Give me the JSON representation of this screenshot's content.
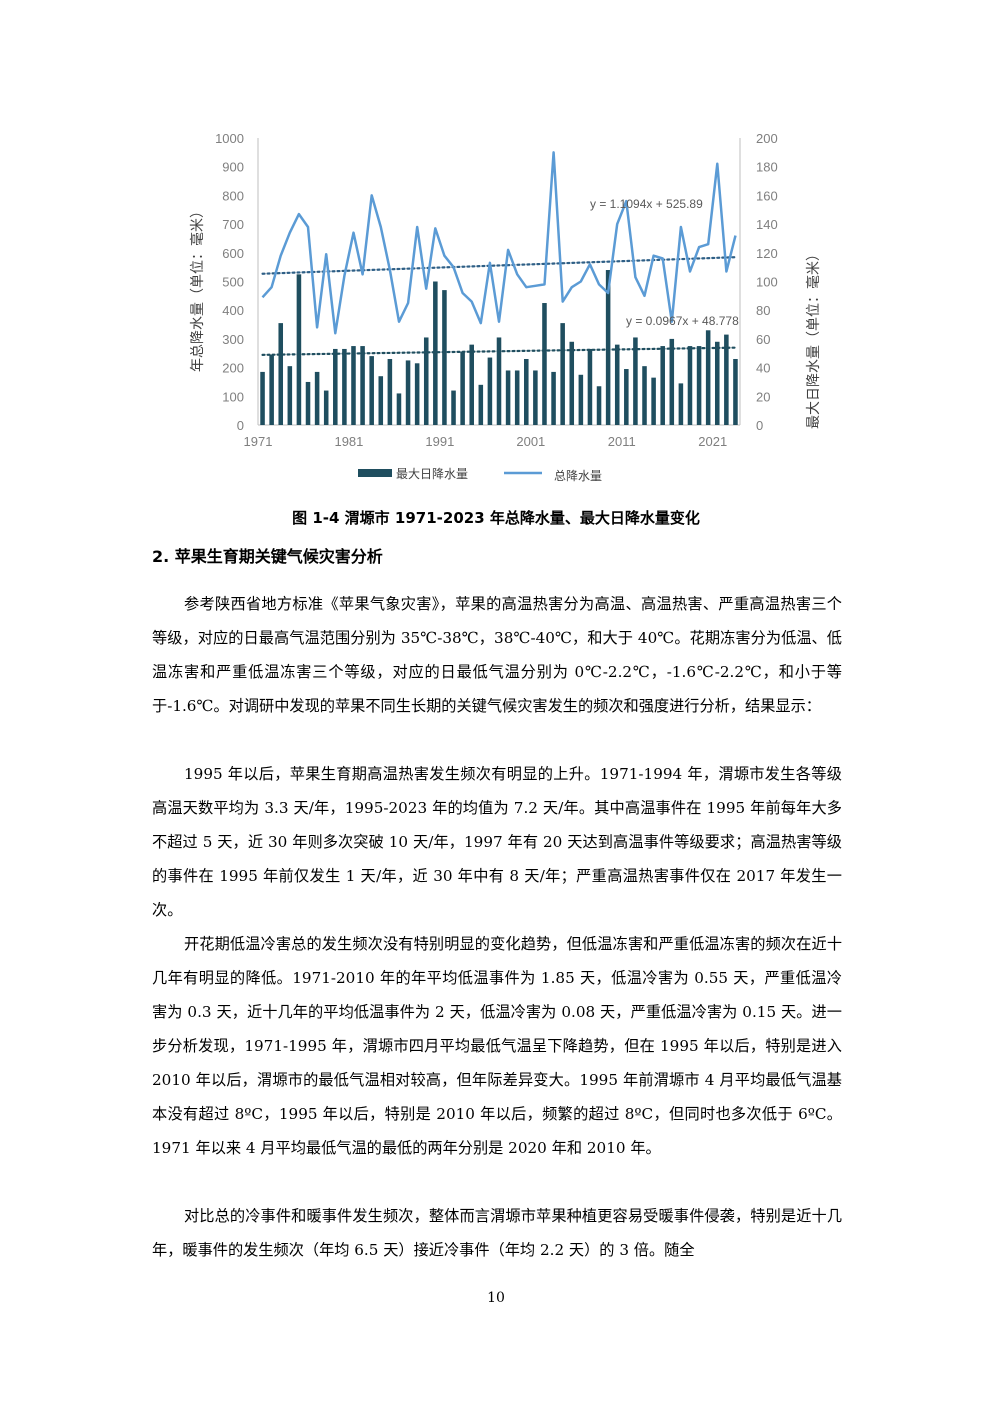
{
  "figure": {
    "caption": "图 1-4  渭塬市 1971-2023 年总降水量、最大日降水量变化",
    "left_axis_label": "年总降水量（单位：毫米）",
    "right_axis_label": "最大日降水量（单位：毫米）",
    "legend": {
      "bar": "最大日降水量",
      "line": "总降水量"
    },
    "eq_total": "y = 1.1094x + 525.89",
    "eq_max": "y = 0.0967x + 48.778"
  },
  "chart_data": {
    "type": "bar+line",
    "x_ticks": [
      "1971",
      "1981",
      "1991",
      "2001",
      "2011",
      "2021"
    ],
    "left_ticks": [
      "0",
      "100",
      "200",
      "300",
      "400",
      "500",
      "600",
      "700",
      "800",
      "900",
      "1000"
    ],
    "right_ticks": [
      "0",
      "20",
      "40",
      "60",
      "80",
      "100",
      "120",
      "140",
      "160",
      "180",
      "200"
    ],
    "left_ylim": [
      0,
      1000
    ],
    "right_ylim": [
      0,
      200
    ],
    "years": [
      1971,
      1972,
      1973,
      1974,
      1975,
      1976,
      1977,
      1978,
      1979,
      1980,
      1981,
      1982,
      1983,
      1984,
      1985,
      1986,
      1987,
      1988,
      1989,
      1990,
      1991,
      1992,
      1993,
      1994,
      1995,
      1996,
      1997,
      1998,
      1999,
      2000,
      2001,
      2002,
      2003,
      2004,
      2005,
      2006,
      2007,
      2008,
      2009,
      2010,
      2011,
      2012,
      2013,
      2014,
      2015,
      2016,
      2017,
      2018,
      2019,
      2020,
      2021,
      2022,
      2023
    ],
    "series": [
      {
        "name": "最大日降水量",
        "kind": "bar",
        "axis": "right",
        "color": "#1f4e5f",
        "values": [
          37,
          49,
          71,
          41,
          105,
          30,
          37,
          24,
          53,
          53,
          55,
          55,
          48,
          34,
          46,
          22,
          45,
          43,
          61,
          100,
          94,
          24,
          51,
          56,
          28,
          47,
          61,
          38,
          38,
          46,
          38,
          85,
          37,
          71,
          58,
          35,
          53,
          27,
          108,
          56,
          39,
          61,
          41,
          33,
          55,
          60,
          29,
          55,
          55,
          66,
          58,
          63,
          46
        ]
      },
      {
        "name": "总降水量",
        "kind": "line",
        "axis": "left",
        "color": "#5b9bd5",
        "values": [
          445,
          480,
          590,
          670,
          735,
          690,
          340,
          595,
          320,
          520,
          670,
          525,
          800,
          690,
          540,
          360,
          425,
          690,
          475,
          685,
          590,
          550,
          460,
          430,
          355,
          565,
          360,
          610,
          525,
          480,
          485,
          490,
          950,
          430,
          480,
          500,
          560,
          490,
          460,
          700,
          780,
          515,
          450,
          590,
          580,
          360,
          690,
          535,
          620,
          630,
          910,
          535,
          660
        ]
      }
    ],
    "trendlines": [
      {
        "series": "总降水量",
        "axis": "left",
        "slope": 1.1094,
        "intercept": 525.89
      },
      {
        "series": "最大日降水量",
        "axis": "right",
        "slope": 0.0967,
        "intercept": 48.778
      }
    ],
    "grid": false,
    "legend_position": "bottom"
  },
  "section": {
    "title": "2.    苹果生育期关键气候灾害分析"
  },
  "paragraphs": [
    "参考陕西省地方标准《苹果气象灾害》，苹果的高温热害分为高温、高温热害、严重高温热害三个等级，对应的日最高气温范围分别为 35℃-38℃，38℃-40℃，和大于 40℃。花期冻害分为低温、低温冻害和严重低温冻害三个等级，对应的日最低气温分别为 0℃-2.2℃，-1.6℃-2.2℃，和小于等于-1.6℃。对调研中发现的苹果不同生长期的关键气候灾害发生的频次和强度进行分析，结果显示：",
    "1995 年以后，苹果生育期高温热害发生频次有明显的上升。1971-1994 年，渭塬市发生各等级高温天数平均为 3.3 天/年，1995-2023 年的均值为 7.2 天/年。其中高温事件在 1995 年前每年大多不超过 5 天，近 30 年则多次突破 10 天/年，1997 年有 20 天达到高温事件等级要求；高温热害等级的事件在 1995 年前仅发生 1 天/年，近 30 年中有 8 天/年；严重高温热害事件仅在 2017 年发生一次。",
    "开花期低温冷害总的发生频次没有特别明显的变化趋势，但低温冻害和严重低温冻害的频次在近十几年有明显的降低。1971-2010 年的年平均低温事件为 1.85 天，低温冷害为 0.55 天，严重低温冷害为 0.3 天，近十几年的平均低温事件为 2 天，低温冷害为 0.08 天，严重低温冷害为 0.15 天。进一步分析发现，1971-1995 年，渭塬市四月平均最低气温呈下降趋势，但在 1995 年以后，特别是进入 2010 年以后，渭塬市的最低气温相对较高，但年际差异变大。1995 年前渭塬市 4 月平均最低气温基本没有超过 8ºC，1995 年以后，特别是 2010 年以后，频繁的超过 8ºC，但同时也多次低于 6ºC。1971 年以来 4 月平均最低气温的最低的两年分别是 2020 年和 2010 年。",
    "对比总的冷事件和暖事件发生频次，整体而言渭塬市苹果种植更容易受暖事件侵袭，特别是近十几年，暖事件的发生频次（年均 6.5 天）接近冷事件（年均 2.2 天）的 3 倍。随全"
  ],
  "page_number": "10"
}
